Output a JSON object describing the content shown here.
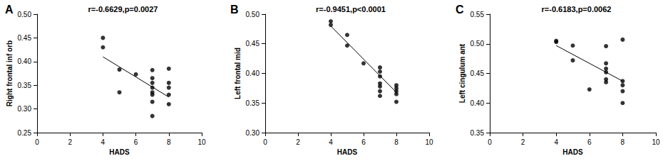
{
  "chart_data": [
    {
      "type": "scatter",
      "panel": "A",
      "title": "r=-0.6629,p=0.0027",
      "x_label": "HADS",
      "y_label": "Right frontal inf orb",
      "color": "#000000",
      "marker": "circle",
      "grid": false,
      "x": [
        4,
        4,
        5,
        5,
        6,
        7,
        7,
        7,
        7,
        7,
        7,
        7,
        7,
        8,
        8,
        8,
        8,
        8
      ],
      "values": [
        0.45,
        0.43,
        0.383,
        0.335,
        0.373,
        0.382,
        0.365,
        0.355,
        0.345,
        0.335,
        0.33,
        0.315,
        0.285,
        0.385,
        0.355,
        0.345,
        0.33,
        0.31
      ],
      "trend_line": {
        "x": [
          4,
          8
        ],
        "values": [
          0.41,
          0.325
        ]
      },
      "xlim": [
        0,
        10
      ],
      "xticks": [
        0,
        2,
        4,
        6,
        8,
        10
      ],
      "ylim": [
        0.25,
        0.5
      ],
      "yticks": [
        0.25,
        {
          "value": 0.3,
          "label": "0.30"
        },
        0.35,
        {
          "value": 0.4,
          "label": "0.40"
        },
        0.45,
        {
          "value": 0.5,
          "label": "0.50"
        }
      ]
    },
    {
      "type": "scatter",
      "panel": "B",
      "title": "r=-0.9451,p<0.0001",
      "x_label": "HADS",
      "y_label": "Left frontal mid",
      "color": "#000000",
      "marker": "circle",
      "grid": false,
      "x": [
        4,
        4,
        5,
        5,
        6,
        7,
        7,
        7,
        7,
        7,
        7,
        7,
        8,
        8,
        8,
        8,
        8
      ],
      "values": [
        0.488,
        0.482,
        0.465,
        0.447,
        0.417,
        0.41,
        0.403,
        0.395,
        0.383,
        0.378,
        0.37,
        0.362,
        0.38,
        0.375,
        0.37,
        0.365,
        0.352
      ],
      "trend_line": {
        "x": [
          4,
          8
        ],
        "values": [
          0.48,
          0.368
        ]
      },
      "xlim": [
        0,
        10
      ],
      "xticks": [
        0,
        2,
        4,
        6,
        8,
        10
      ],
      "ylim": [
        0.3,
        0.5
      ],
      "yticks": [
        {
          "value": 0.3,
          "label": "0.30"
        },
        0.35,
        {
          "value": 0.4,
          "label": "0.40"
        },
        0.45,
        {
          "value": 0.5,
          "label": "0.50"
        }
      ]
    },
    {
      "type": "scatter",
      "panel": "C",
      "title": "r=-0.6183,p=0.0062",
      "x_label": "HADS",
      "y_label": "Left cingulum ant",
      "color": "#000000",
      "marker": "circle",
      "grid": false,
      "x": [
        4,
        4,
        5,
        5,
        6,
        7,
        7,
        7,
        7,
        7,
        7,
        8,
        8,
        8,
        8,
        8
      ],
      "values": [
        0.505,
        0.503,
        0.497,
        0.472,
        0.423,
        0.496,
        0.467,
        0.458,
        0.452,
        0.44,
        0.435,
        0.507,
        0.437,
        0.43,
        0.42,
        0.4
      ],
      "trend_line": {
        "x": [
          4,
          8
        ],
        "values": [
          0.497,
          0.437
        ]
      },
      "xlim": [
        0,
        10
      ],
      "xticks": [
        0,
        2,
        4,
        6,
        8,
        10
      ],
      "ylim": [
        0.35,
        0.55
      ],
      "yticks": [
        0.35,
        {
          "value": 0.4,
          "label": "0.40"
        },
        0.45,
        {
          "value": 0.5,
          "label": "0.50"
        },
        0.55
      ]
    }
  ]
}
